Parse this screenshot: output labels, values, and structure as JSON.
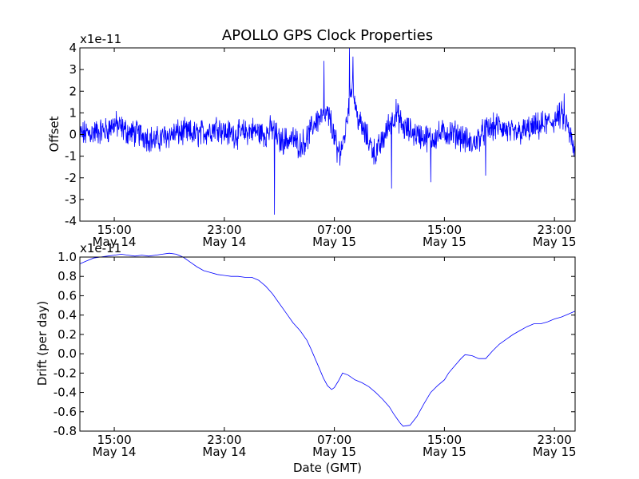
{
  "figure": {
    "title": "APOLLO GPS Clock Properties",
    "line_color": "#0000ff"
  },
  "chart_data": [
    {
      "type": "line",
      "title": "APOLLO GPS Clock Properties",
      "ylabel": "Offset",
      "xlabel": "",
      "y_scale_label": "x1e-11",
      "ylim": [
        -4,
        4
      ],
      "yticks": [
        -4,
        -3,
        -2,
        -1,
        0,
        1,
        2,
        3,
        4
      ],
      "ytick_labels": [
        "-4",
        "-3",
        "-2",
        "-1",
        "0",
        "1",
        "2",
        "3",
        "4"
      ],
      "xlim": [
        12.5,
        48.5
      ],
      "xticks": [
        15,
        23,
        31,
        39,
        47
      ],
      "xtick_labels": [
        [
          "15:00",
          "May 14"
        ],
        [
          "23:00",
          "May 14"
        ],
        [
          "07:00",
          "May 15"
        ],
        [
          "15:00",
          "May 15"
        ],
        [
          "23:00",
          "May 15"
        ]
      ],
      "x_unit": "hours since May 14 00:00 GMT",
      "grid": false,
      "series": [
        {
          "noise_level": 0.5,
          "x": [
            12.5,
            13.5,
            14.5,
            15.0,
            15.5,
            16.0,
            17.0,
            18.0,
            19.0,
            20.0,
            21.0,
            22.0,
            22.5,
            23.0,
            24.0,
            25.0,
            26.0,
            26.5,
            27.0,
            28.0,
            28.5,
            29.0,
            29.3,
            29.6,
            30.0,
            30.5,
            30.8,
            31.0,
            31.3,
            31.6,
            31.8,
            32.0,
            32.3,
            32.6,
            33.0,
            33.5,
            34.0,
            34.5,
            35.0,
            35.5,
            36.0,
            37.0,
            38.0,
            39.0,
            40.0,
            41.0,
            42.0,
            43.0,
            44.0,
            45.0,
            46.0,
            46.8,
            47.5,
            48.0,
            48.5
          ],
          "y": [
            0.0,
            0.1,
            0.2,
            0.5,
            0.3,
            0.1,
            0.0,
            -0.3,
            0.0,
            0.1,
            0.0,
            0.2,
            0.4,
            0.1,
            0.0,
            0.2,
            0.0,
            0.3,
            -0.3,
            -0.2,
            -0.5,
            -0.2,
            0.2,
            0.6,
            0.8,
            0.9,
            0.5,
            -0.2,
            -0.8,
            -0.5,
            0.1,
            1.2,
            2.5,
            1.0,
            0.3,
            -0.3,
            -0.9,
            -0.3,
            0.5,
            1.0,
            0.3,
            0.0,
            -0.2,
            0.1,
            0.0,
            -0.5,
            0.2,
            0.4,
            0.0,
            0.2,
            0.4,
            0.6,
            0.9,
            0.3,
            -1.0
          ]
        }
      ],
      "spikes": [
        {
          "x": 26.65,
          "y": -3.7
        },
        {
          "x": 30.25,
          "y": 3.4
        },
        {
          "x": 31.2,
          "y": -1.3
        },
        {
          "x": 32.1,
          "y": 4.0
        },
        {
          "x": 32.35,
          "y": 3.6
        },
        {
          "x": 35.15,
          "y": -2.5
        },
        {
          "x": 38.0,
          "y": -2.2
        },
        {
          "x": 42.0,
          "y": -1.9
        },
        {
          "x": 47.7,
          "y": 1.9
        }
      ]
    },
    {
      "type": "line",
      "title": "",
      "ylabel": "Drift (per day)",
      "xlabel": "Date (GMT)",
      "y_scale_label": "x1e-11",
      "ylim": [
        -0.8,
        1.0
      ],
      "yticks": [
        -0.8,
        -0.6,
        -0.4,
        -0.2,
        0.0,
        0.2,
        0.4,
        0.6,
        0.8,
        1.0
      ],
      "ytick_labels": [
        "-0.8",
        "-0.6",
        "-0.4",
        "-0.2",
        "0.0",
        "0.2",
        "0.4",
        "0.6",
        "0.8",
        "1.0"
      ],
      "xlim": [
        12.5,
        48.5
      ],
      "xticks": [
        15,
        23,
        31,
        39,
        47
      ],
      "xtick_labels": [
        [
          "15:00",
          "May 14"
        ],
        [
          "23:00",
          "May 14"
        ],
        [
          "07:00",
          "May 15"
        ],
        [
          "15:00",
          "May 15"
        ],
        [
          "23:00",
          "May 15"
        ]
      ],
      "grid": false,
      "series": [
        {
          "x": [
            12.5,
            13.0,
            13.5,
            14.0,
            14.5,
            15.0,
            15.5,
            16.0,
            16.5,
            17.0,
            17.5,
            18.0,
            18.5,
            19.0,
            19.5,
            20.0,
            20.5,
            21.0,
            21.5,
            22.0,
            22.5,
            23.0,
            23.5,
            24.0,
            24.5,
            25.0,
            25.5,
            26.0,
            26.5,
            27.0,
            27.5,
            28.0,
            28.5,
            29.0,
            29.3,
            29.6,
            29.9,
            30.2,
            30.5,
            30.8,
            31.0,
            31.3,
            31.6,
            32.0,
            32.5,
            33.0,
            33.5,
            34.0,
            34.5,
            35.0,
            35.3,
            35.6,
            35.8,
            36.0,
            36.5,
            37.0,
            37.5,
            38.0,
            38.5,
            39.0,
            39.3,
            39.6,
            39.9,
            40.2,
            40.5,
            41.0,
            41.5,
            42.0,
            42.5,
            43.0,
            43.5,
            44.0,
            44.5,
            45.0,
            45.5,
            46.0,
            46.5,
            47.0,
            47.5,
            48.0,
            48.5
          ],
          "y": [
            0.93,
            0.96,
            0.99,
            1.0,
            1.01,
            1.02,
            1.03,
            1.02,
            1.01,
            1.02,
            1.01,
            1.02,
            1.03,
            1.04,
            1.03,
            1.0,
            0.95,
            0.9,
            0.86,
            0.84,
            0.82,
            0.81,
            0.8,
            0.8,
            0.79,
            0.79,
            0.76,
            0.7,
            0.62,
            0.52,
            0.42,
            0.32,
            0.24,
            0.14,
            0.05,
            -0.05,
            -0.15,
            -0.25,
            -0.33,
            -0.37,
            -0.35,
            -0.28,
            -0.2,
            -0.22,
            -0.27,
            -0.3,
            -0.34,
            -0.4,
            -0.47,
            -0.55,
            -0.62,
            -0.68,
            -0.72,
            -0.75,
            -0.74,
            -0.65,
            -0.52,
            -0.4,
            -0.33,
            -0.27,
            -0.2,
            -0.15,
            -0.1,
            -0.05,
            -0.01,
            -0.02,
            -0.05,
            -0.05,
            0.03,
            0.1,
            0.15,
            0.2,
            0.24,
            0.28,
            0.31,
            0.31,
            0.33,
            0.36,
            0.38,
            0.41,
            0.44
          ]
        }
      ]
    }
  ]
}
